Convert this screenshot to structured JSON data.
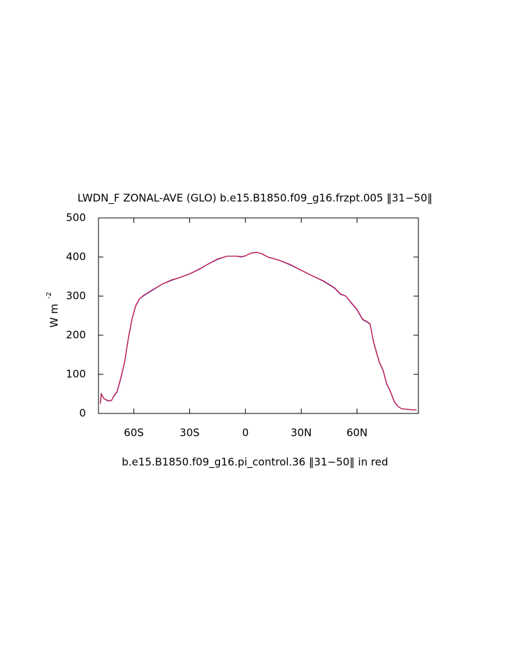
{
  "chart_data": {
    "type": "line",
    "title": "LWDN_F ZONAL-AVE (GLO) b.e15.B1850.f09_g16.frzpt.005 ‖31−50‖",
    "subtitle": "b.e15.B1850.f09_g16.pi_control.36 ‖31−50‖ in red",
    "y_label": "W m",
    "y_label_sup": "-2",
    "x": [
      -78,
      -77.5,
      -77,
      -76,
      -74,
      -72,
      -71,
      -69,
      -67,
      -65,
      -63,
      -61,
      -59,
      -57,
      -55,
      -50,
      -45,
      -40,
      -35,
      -30,
      -25,
      -20,
      -15,
      -10,
      -5,
      -2,
      0,
      3,
      6,
      9,
      12,
      18,
      24,
      30,
      36,
      42,
      48,
      51,
      54,
      57,
      60,
      63,
      66,
      67,
      69,
      72,
      74,
      76,
      78,
      80,
      82,
      84,
      88,
      92
    ],
    "series": [
      {
        "color": "#1a2ecc",
        "values": [
          25,
          50,
          45,
          38,
          32,
          33,
          42,
          55,
          90,
          130,
          190,
          240,
          275,
          293,
          300,
          315,
          330,
          340,
          348,
          357,
          368,
          382,
          394,
          402,
          402,
          400,
          403,
          410,
          412,
          408,
          400,
          392,
          380,
          366,
          352,
          338,
          320,
          305,
          300,
          282,
          265,
          240,
          232,
          228,
          180,
          130,
          110,
          75,
          55,
          30,
          18,
          12,
          10,
          9
        ]
      },
      {
        "color": "#cc1a4a",
        "values": [
          26,
          51,
          45,
          38,
          33,
          33,
          43,
          56,
          92,
          131,
          191,
          241,
          276,
          293,
          301,
          316,
          330,
          341,
          348,
          357,
          369,
          382,
          395,
          402,
          402,
          401,
          403,
          410,
          412,
          408,
          400,
          392,
          381,
          366,
          352,
          339,
          321,
          306,
          300,
          283,
          266,
          241,
          233,
          229,
          181,
          131,
          111,
          76,
          56,
          31,
          18,
          12,
          10,
          9
        ]
      }
    ],
    "xlim": [
      -79,
      93
    ],
    "xticks": [
      {
        "value": -60,
        "label": "60S"
      },
      {
        "value": -30,
        "label": "30S"
      },
      0,
      {
        "value": 30,
        "label": "30N"
      },
      {
        "value": 60,
        "label": "60N"
      }
    ],
    "ylim": [
      0,
      500
    ],
    "yticks": [
      0,
      100,
      200,
      300,
      400,
      500
    ]
  }
}
